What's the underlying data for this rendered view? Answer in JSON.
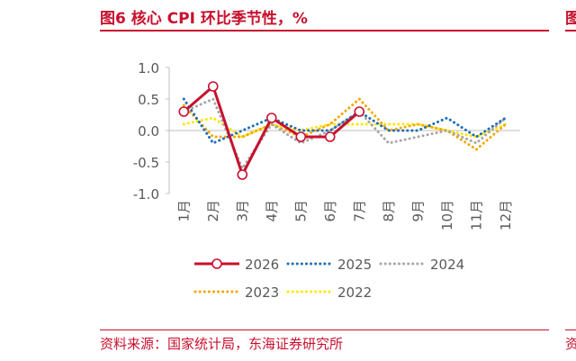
{
  "header": {
    "title": "图6  核心 CPI 环比季节性，%",
    "right_fragment": "图"
  },
  "footer": {
    "source": "资料来源：国家统计局，东海证券研究所",
    "right_fragment": "资"
  },
  "colors": {
    "accent": "#c8102e"
  },
  "chart_data": {
    "type": "line",
    "title": "",
    "xlabel": "",
    "ylabel": "",
    "ylim": [
      -1.0,
      1.0
    ],
    "yticks": [
      "1.0",
      "0.5",
      "0.0",
      "-0.5",
      "-1.0"
    ],
    "categories": [
      "1月",
      "2月",
      "3月",
      "4月",
      "5月",
      "6月",
      "7月",
      "8月",
      "9月",
      "10月",
      "11月",
      "12月"
    ],
    "legend_position": "bottom",
    "series": [
      {
        "name": "2026",
        "color": "#c8102e",
        "style": "solid-markers",
        "values": [
          0.3,
          0.7,
          -0.7,
          0.2,
          -0.1,
          -0.1,
          0.3,
          null,
          null,
          null,
          null,
          null
        ]
      },
      {
        "name": "2025",
        "color": "#1f6fb5",
        "style": "dotted",
        "values": [
          0.5,
          -0.2,
          0.0,
          0.2,
          0.0,
          0.0,
          0.3,
          0.0,
          0.0,
          0.2,
          -0.1,
          0.2
        ]
      },
      {
        "name": "2024",
        "color": "#a6a6a6",
        "style": "dotted",
        "values": [
          0.3,
          0.5,
          -0.6,
          0.1,
          -0.2,
          0.0,
          0.3,
          -0.2,
          -0.1,
          0.0,
          -0.2,
          0.2
        ]
      },
      {
        "name": "2023",
        "color": "#f5a800",
        "style": "dotted",
        "values": [
          0.4,
          -0.1,
          -0.1,
          0.1,
          -0.1,
          0.1,
          0.5,
          0.0,
          0.1,
          0.0,
          -0.3,
          0.1
        ]
      },
      {
        "name": "2022",
        "color": "#ffe600",
        "style": "dotted",
        "values": [
          0.1,
          0.2,
          -0.1,
          0.1,
          0.0,
          0.1,
          0.1,
          0.1,
          0.1,
          0.0,
          -0.1,
          0.1
        ]
      }
    ]
  }
}
